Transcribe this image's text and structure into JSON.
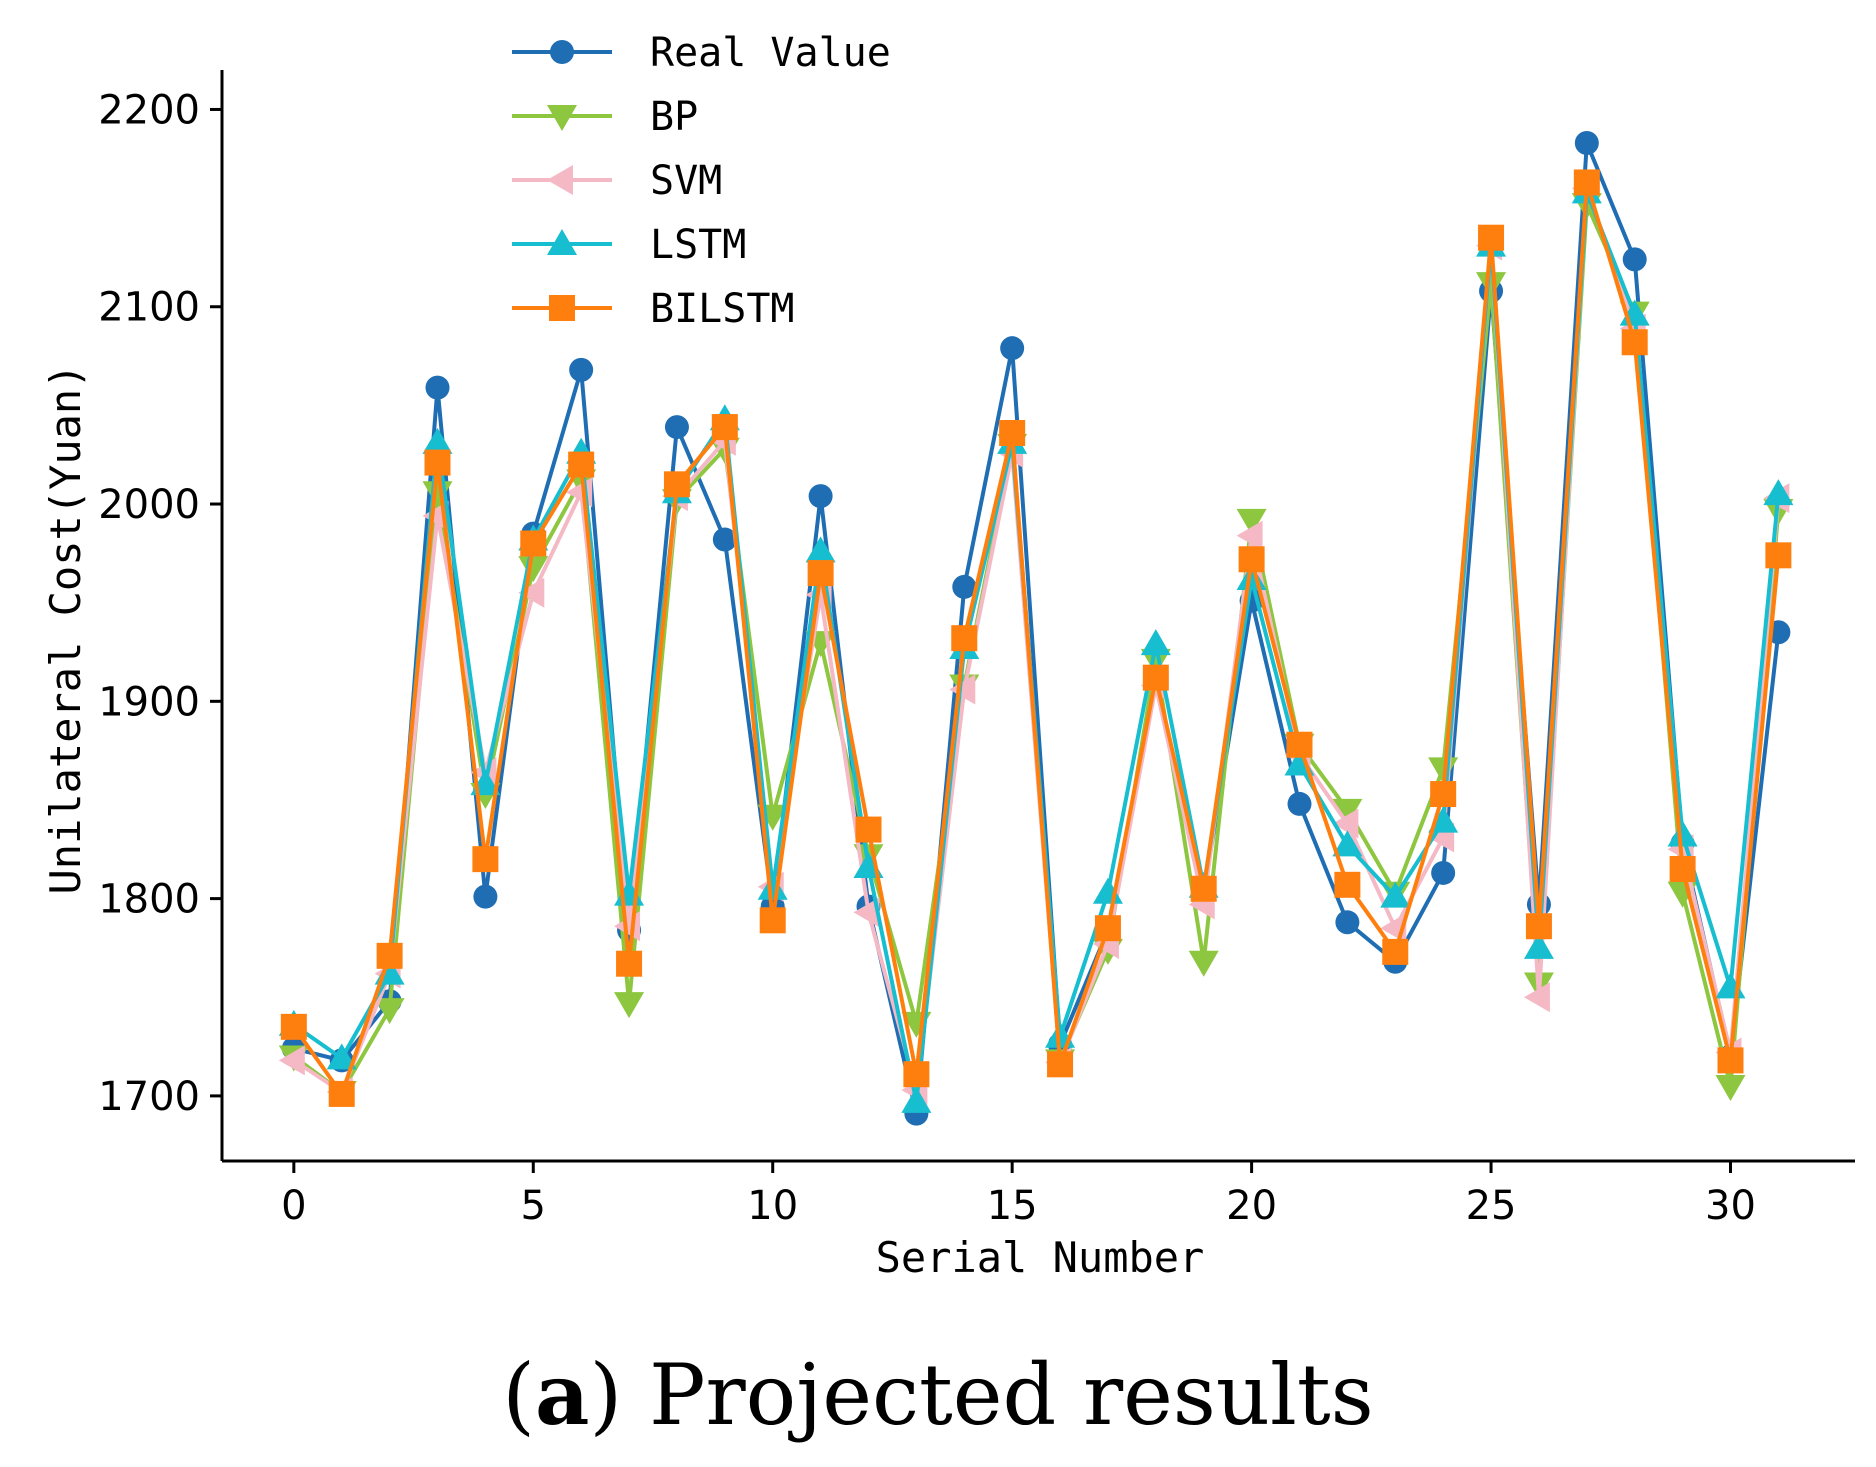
{
  "caption": {
    "letter": "a",
    "text": "Projected results"
  },
  "chart_data": {
    "type": "line",
    "title": "",
    "xlabel": "Serial Number",
    "ylabel": "Unilateral Cost(Yuan)",
    "xlim": [
      -1.5,
      32.6
    ],
    "ylim": [
      1667,
      2220
    ],
    "xticks": [
      0,
      5,
      10,
      15,
      20,
      25,
      30
    ],
    "yticks": [
      1700,
      1800,
      1900,
      2000,
      2100,
      2200
    ],
    "legend_position": "top-left",
    "x": [
      0,
      1,
      2,
      3,
      4,
      5,
      6,
      7,
      8,
      9,
      10,
      11,
      12,
      13,
      14,
      15,
      16,
      17,
      18,
      19,
      20,
      21,
      22,
      23,
      24,
      25,
      26,
      27,
      28,
      29,
      30,
      31
    ],
    "series": [
      {
        "name": "Real Value",
        "color": "#1f6eb4",
        "marker": "circle",
        "values": [
          1724,
          1718,
          1748,
          2059,
          1801,
          1985,
          2068,
          1784,
          2039,
          1982,
          1796,
          2004,
          1796,
          1691,
          1958,
          2079,
          1726,
          1784,
          1910,
          1803,
          1951,
          1848,
          1788,
          1768,
          1813,
          2108,
          1797,
          2183,
          2124,
          1828,
          1720,
          1935
        ]
      },
      {
        "name": "BP",
        "color": "#8dc63f",
        "marker": "triangle-down",
        "values": [
          1720,
          1702,
          1744,
          2006,
          1853,
          1968,
          2012,
          1747,
          2002,
          2028,
          1842,
          1930,
          1822,
          1737,
          1908,
          2030,
          1718,
          1774,
          1921,
          1768,
          1992,
          1878,
          1845,
          1803,
          1866,
          2112,
          1757,
          2152,
          2097,
          1803,
          1705,
          1997
        ]
      },
      {
        "name": "SVM",
        "color": "#f5b8c5",
        "marker": "triangle-left",
        "values": [
          1718,
          1702,
          1762,
          1994,
          1864,
          1955,
          2006,
          1786,
          2004,
          2032,
          1806,
          1954,
          1793,
          1703,
          1906,
          2026,
          1717,
          1777,
          1908,
          1797,
          1984,
          1873,
          1838,
          1785,
          1831,
          2131,
          1750,
          2160,
          2089,
          1825,
          1722,
          2003
        ]
      },
      {
        "name": "LSTM",
        "color": "#17becf",
        "marker": "triangle-up",
        "values": [
          1736,
          1719,
          1762,
          2031,
          1858,
          1982,
          2026,
          1802,
          2006,
          2043,
          1805,
          1976,
          1816,
          1697,
          1927,
          2031,
          1730,
          1803,
          1929,
          1806,
          1962,
          1868,
          1827,
          1801,
          1839,
          2131,
          1775,
          2158,
          2096,
          1832,
          1755,
          2005
        ]
      },
      {
        "name": "BILSTM",
        "color": "#ff7f0e",
        "marker": "square",
        "values": [
          1735,
          1701,
          1771,
          2021,
          1820,
          1980,
          2020,
          1767,
          2010,
          2039,
          1789,
          1965,
          1835,
          1711,
          1932,
          2036,
          1716,
          1785,
          1912,
          1805,
          1972,
          1878,
          1807,
          1773,
          1853,
          2135,
          1786,
          2163,
          2082,
          1815,
          1718,
          1974
        ]
      }
    ]
  }
}
